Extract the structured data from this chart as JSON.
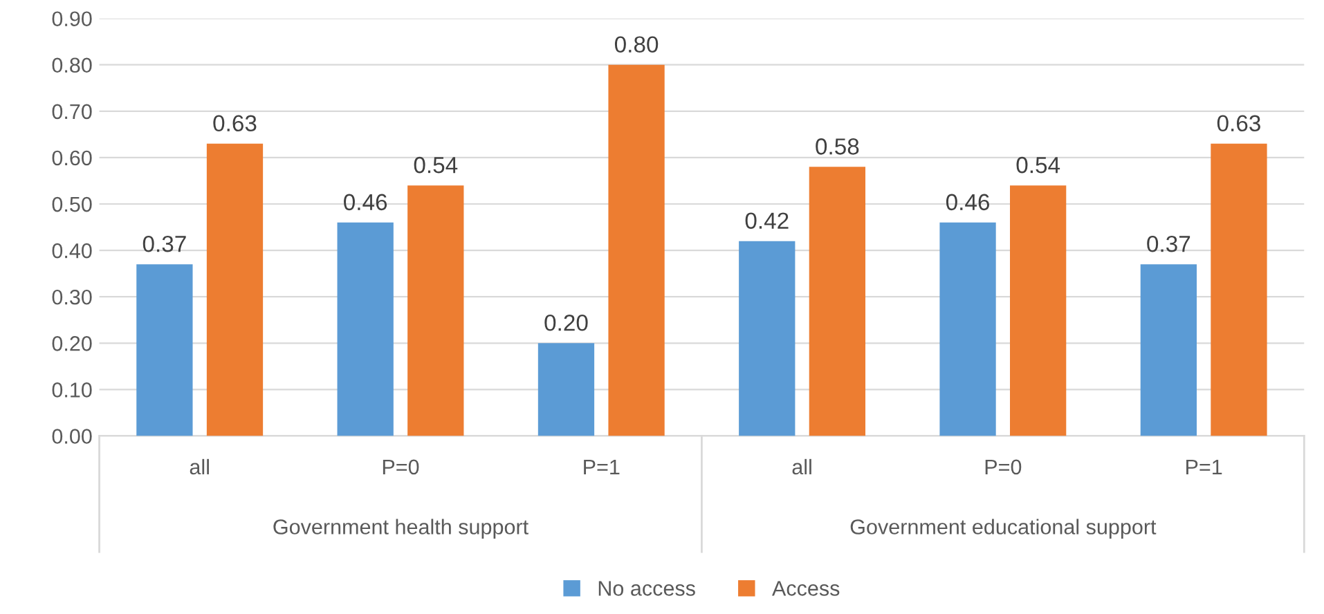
{
  "chart_data": {
    "type": "bar",
    "categories": [
      "all",
      "P=0",
      "P=1",
      "all",
      "P=0",
      "P=1"
    ],
    "series": [
      {
        "name": "No access",
        "color": "#5b9bd5",
        "values": [
          0.37,
          0.46,
          0.2,
          0.42,
          0.46,
          0.37
        ],
        "value_labels": [
          "0.37",
          "0.46",
          "0.20",
          "0.42",
          "0.46",
          "0.37"
        ]
      },
      {
        "name": "Access",
        "color": "#ed7d31",
        "values": [
          0.63,
          0.54,
          0.8,
          0.58,
          0.54,
          0.63
        ],
        "value_labels": [
          "0.63",
          "0.54",
          "0.80",
          "0.58",
          "0.54",
          "0.63"
        ]
      }
    ],
    "ylim": [
      0,
      0.9
    ],
    "yticks": [
      {
        "value": 0,
        "label": "0.00"
      },
      {
        "value": 0.1,
        "label": "0.10"
      },
      {
        "value": 0.2,
        "label": "0.20"
      },
      {
        "value": 0.3,
        "label": "0.30"
      },
      {
        "value": 0.4,
        "label": "0.40"
      },
      {
        "value": 0.5,
        "label": "0.50"
      },
      {
        "value": 0.6,
        "label": "0.60"
      },
      {
        "value": 0.7,
        "label": "0.70"
      },
      {
        "value": 0.8,
        "label": "0.80"
      },
      {
        "value": 0.9,
        "label": "0.90"
      }
    ],
    "annotations": [
      "Government health support",
      "Government educational support"
    ],
    "grid": "y",
    "legend": "bottom"
  }
}
